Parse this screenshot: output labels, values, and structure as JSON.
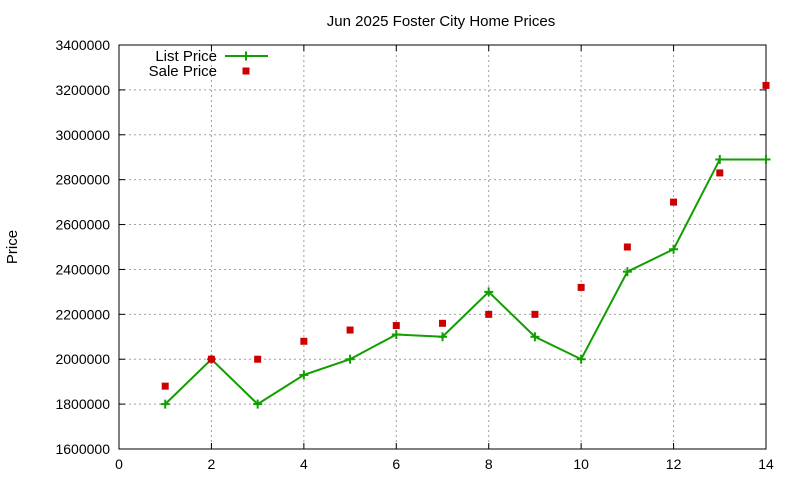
{
  "chart_data": {
    "type": "line",
    "title": "Jun 2025 Foster City Home Prices",
    "xlabel": "",
    "ylabel": "Price",
    "xlim": [
      0,
      14
    ],
    "ylim": [
      1600000,
      3400000
    ],
    "xticks": [
      0,
      2,
      4,
      6,
      8,
      10,
      12,
      14
    ],
    "yticks": [
      1600000,
      1800000,
      2000000,
      2200000,
      2400000,
      2600000,
      2800000,
      3000000,
      3200000,
      3400000
    ],
    "grid": true,
    "legend_position": "top-left",
    "series": [
      {
        "name": "List Price",
        "type": "line",
        "marker": "plus",
        "color": "#119e00",
        "x": [
          1,
          2,
          3,
          4,
          5,
          6,
          7,
          8,
          9,
          10,
          11,
          12,
          13,
          14
        ],
        "y": [
          1800000,
          2000000,
          1800000,
          1930000,
          2000000,
          2110000,
          2100000,
          2300000,
          2100000,
          2000000,
          2390000,
          2490000,
          2890000,
          2890000
        ]
      },
      {
        "name": "Sale Price",
        "type": "scatter",
        "marker": "square",
        "color": "#cc0000",
        "x": [
          1,
          2,
          3,
          4,
          5,
          6,
          7,
          8,
          9,
          10,
          11,
          12,
          13,
          14
        ],
        "y": [
          1880000,
          2000000,
          2000000,
          2080000,
          2130000,
          2150000,
          2160000,
          2200000,
          2200000,
          2320000,
          2500000,
          2700000,
          2830000,
          3220000
        ]
      }
    ]
  }
}
